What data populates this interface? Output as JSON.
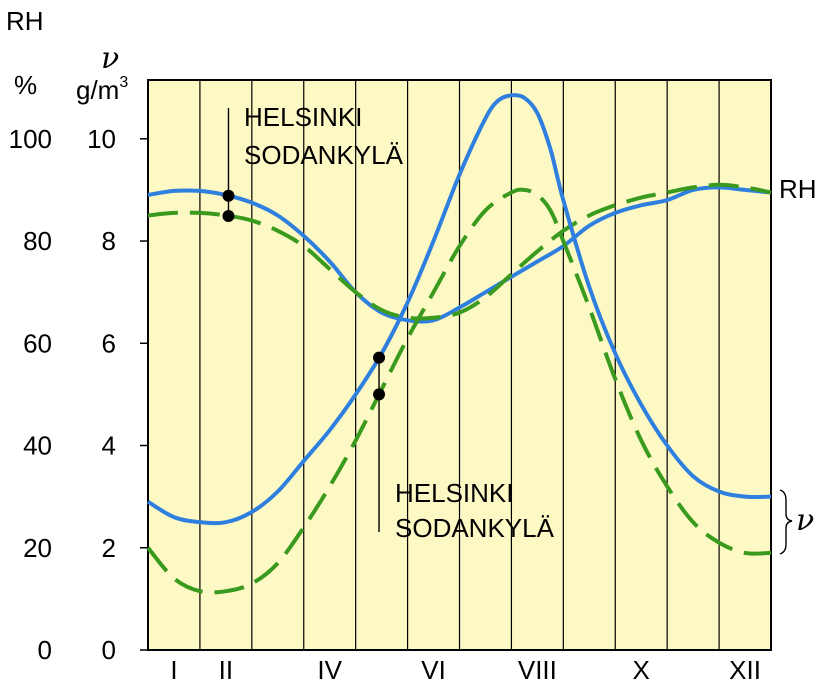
{
  "chart_data": {
    "type": "line",
    "left_axis_title": "RH",
    "left_axis_unit": "%",
    "right_axis_symbol": "ν",
    "right_axis_unit": "g/m",
    "right_axis_unit_exp": "3",
    "rh_ticks": [
      "0",
      "20",
      "40",
      "60",
      "80",
      "100"
    ],
    "v_ticks": [
      "0",
      "2",
      "4",
      "6",
      "8",
      "10"
    ],
    "x_ticks": [
      {
        "month": 1,
        "label": "I"
      },
      {
        "month": 2,
        "label": "II"
      },
      {
        "month": 4,
        "label": "IV"
      },
      {
        "month": 6,
        "label": "VI"
      },
      {
        "month": 8,
        "label": "VIII"
      },
      {
        "month": 10,
        "label": "X"
      },
      {
        "month": 12,
        "label": "XII"
      }
    ],
    "xlim": [
      0.5,
      12.5
    ],
    "rh_range": [
      0,
      100
    ],
    "v_range": [
      0,
      10
    ],
    "grid": "vertical month lines",
    "background_color": "#fdf9c4",
    "colors": {
      "helsinki": "#2f7fdf",
      "sodankyla": "#3a9a1e"
    },
    "series": [
      {
        "name": "Helsinki RH",
        "station": "HELSINKI",
        "variable": "RH",
        "unit": "%",
        "style": "solid",
        "x": [
          0.5,
          1.0,
          1.5,
          2.0,
          2.5,
          3.0,
          3.5,
          4.0,
          4.5,
          5.0,
          5.5,
          6.0,
          6.5,
          7.0,
          7.5,
          8.0,
          8.5,
          9.0,
          9.5,
          10.0,
          10.5,
          11.0,
          11.5,
          12.0,
          12.5
        ],
        "y": [
          89,
          89.8,
          89.8,
          89,
          87.5,
          85,
          81,
          76,
          70,
          66,
          64.5,
          64.5,
          67,
          70,
          73,
          76,
          79,
          83,
          85.5,
          87,
          88,
          90,
          90.5,
          90,
          89.5
        ]
      },
      {
        "name": "Sodankylä RH",
        "station": "SODANKYLÄ",
        "variable": "RH",
        "unit": "%",
        "style": "dashed",
        "x": [
          0.5,
          1.0,
          1.5,
          2.0,
          2.5,
          3.0,
          3.5,
          4.0,
          4.5,
          5.0,
          5.5,
          6.0,
          6.5,
          7.0,
          7.5,
          8.0,
          8.5,
          9.0,
          9.5,
          10.0,
          10.5,
          11.0,
          11.5,
          12.0,
          12.5
        ],
        "y": [
          85,
          85.5,
          85.5,
          85,
          84,
          82,
          79,
          74.5,
          70,
          66.5,
          65,
          65,
          66,
          69,
          73.5,
          78,
          82,
          85,
          87,
          88.5,
          89.5,
          90.5,
          91,
          90.5,
          89.5
        ]
      },
      {
        "name": "Helsinki ν",
        "station": "HELSINKI",
        "variable": "ν",
        "unit": "g/m3",
        "style": "solid",
        "x": [
          0.5,
          1.0,
          1.5,
          2.0,
          2.5,
          3.0,
          3.5,
          4.0,
          4.5,
          5.0,
          5.5,
          6.0,
          6.5,
          7.0,
          7.25,
          7.5,
          7.75,
          8.0,
          8.25,
          8.5,
          9.0,
          9.5,
          10.0,
          10.5,
          11.0,
          11.5,
          12.0,
          12.5
        ],
        "y": [
          2.9,
          2.6,
          2.5,
          2.5,
          2.7,
          3.1,
          3.7,
          4.3,
          5.0,
          5.8,
          6.8,
          8.0,
          9.3,
          10.4,
          10.75,
          10.85,
          10.8,
          10.5,
          9.8,
          8.8,
          7.1,
          5.8,
          4.8,
          4.0,
          3.4,
          3.1,
          3.0,
          3.0
        ]
      },
      {
        "name": "Sodankylä ν",
        "station": "SODANKYLÄ",
        "variable": "ν",
        "unit": "g/m3",
        "style": "dashed",
        "x": [
          0.5,
          1.0,
          1.5,
          2.0,
          2.5,
          3.0,
          3.5,
          4.0,
          4.5,
          5.0,
          5.5,
          6.0,
          6.5,
          7.0,
          7.5,
          7.75,
          8.0,
          8.25,
          8.5,
          9.0,
          9.5,
          10.0,
          10.5,
          11.0,
          11.5,
          12.0,
          12.5
        ],
        "y": [
          2.0,
          1.4,
          1.15,
          1.15,
          1.3,
          1.7,
          2.4,
          3.2,
          4.1,
          5.1,
          6.1,
          7.0,
          7.9,
          8.6,
          8.95,
          9.0,
          8.9,
          8.6,
          8.0,
          6.7,
          5.3,
          4.1,
          3.2,
          2.5,
          2.1,
          1.9,
          1.9
        ]
      }
    ],
    "annotations": {
      "upper": {
        "line1": "HELSINKI",
        "line2": "SODANKYLÄ"
      },
      "lower": {
        "line1": "HELSINKI",
        "line2": "SODANKYLÄ"
      },
      "rh_label": "RH",
      "v_label": "ν"
    }
  }
}
